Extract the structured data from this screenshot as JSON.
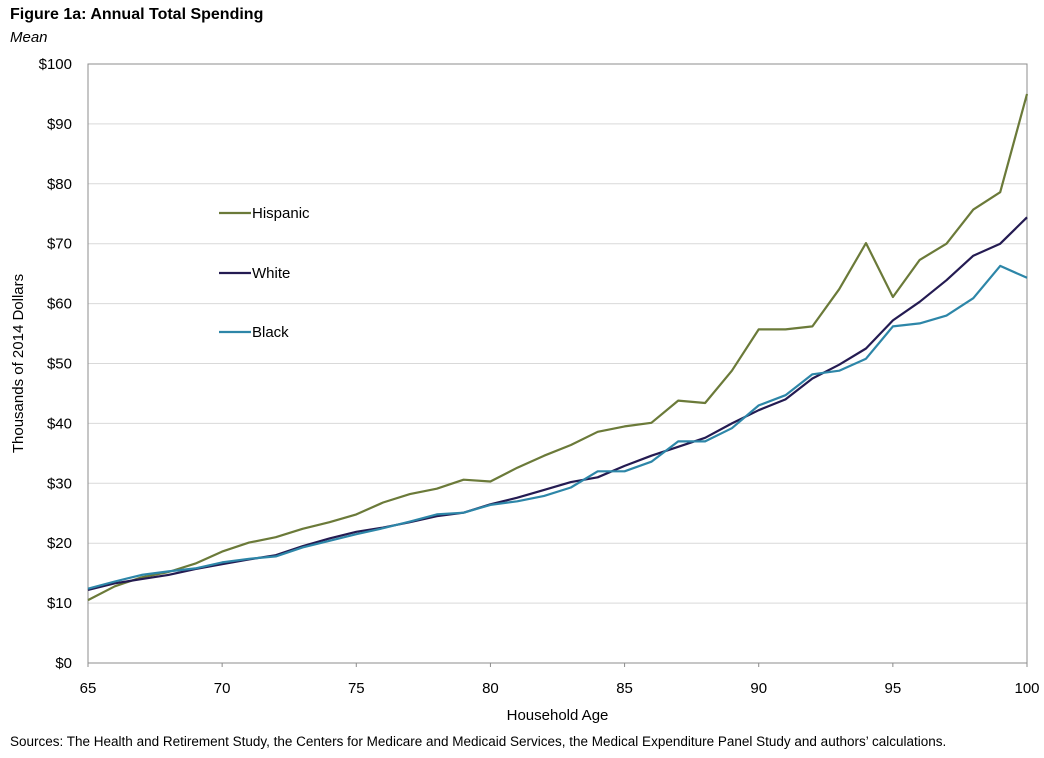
{
  "figure": {
    "title": "Figure 1a: Annual Total Spending",
    "subtitle": "Mean",
    "source": "Sources: The Health and Retirement Study, the Centers for Medicare and Medicaid Services, the Medical Expenditure Panel Study and authors’ calculations."
  },
  "chart_data": {
    "type": "line",
    "title": "Figure 1a: Annual Total Spending",
    "subtitle": "Mean",
    "xlabel": "Household Age",
    "ylabel": "Thousands of 2014 Dollars",
    "xlim": [
      65,
      100
    ],
    "ylim": [
      0,
      100
    ],
    "xticks": [
      65,
      70,
      75,
      80,
      85,
      90,
      95,
      100
    ],
    "yticks": [
      0,
      10,
      20,
      30,
      40,
      50,
      60,
      70,
      80,
      90,
      100
    ],
    "ytick_labels": [
      "$0",
      "$10",
      "$20",
      "$30",
      "$40",
      "$50",
      "$60",
      "$70",
      "$80",
      "$90",
      "$100"
    ],
    "grid": "horizontal",
    "legend_position": "upper-left inside plot",
    "x": [
      65,
      66,
      67,
      68,
      69,
      70,
      71,
      72,
      73,
      74,
      75,
      76,
      77,
      78,
      79,
      80,
      81,
      82,
      83,
      84,
      85,
      86,
      87,
      88,
      89,
      90,
      91,
      92,
      93,
      94,
      95,
      96,
      97,
      98,
      99,
      100
    ],
    "series": [
      {
        "name": "Hispanic",
        "color": "#6b7a39",
        "values": [
          10.5,
          12.8,
          14.3,
          15.2,
          16.6,
          18.6,
          20.1,
          21.0,
          22.4,
          23.5,
          24.8,
          26.8,
          28.2,
          29.1,
          30.6,
          30.3,
          32.6,
          34.6,
          36.4,
          38.6,
          39.5,
          40.1,
          43.8,
          43.4,
          48.8,
          55.7,
          55.7,
          56.2,
          62.4,
          70.1,
          61.1,
          67.3,
          70.0,
          75.7,
          78.6,
          95.0
        ]
      },
      {
        "name": "White",
        "color": "#241b52",
        "values": [
          12.2,
          13.3,
          14.0,
          14.7,
          15.7,
          16.5,
          17.3,
          18.0,
          19.5,
          20.8,
          21.9,
          22.6,
          23.5,
          24.5,
          25.1,
          26.5,
          27.6,
          28.9,
          30.2,
          31.0,
          32.9,
          34.6,
          36.1,
          37.6,
          40.0,
          42.2,
          44.0,
          47.5,
          49.8,
          52.5,
          57.2,
          60.3,
          63.9,
          68.0,
          70.0,
          74.4
        ]
      },
      {
        "name": "Black",
        "color": "#2d86a8",
        "values": [
          12.4,
          13.6,
          14.7,
          15.3,
          15.8,
          16.8,
          17.4,
          17.8,
          19.3,
          20.4,
          21.5,
          22.5,
          23.6,
          24.8,
          25.1,
          26.4,
          27.0,
          27.9,
          29.3,
          32.0,
          32.0,
          33.6,
          37.0,
          37.0,
          39.2,
          43.0,
          44.7,
          48.2,
          48.8,
          50.8,
          56.2,
          56.7,
          58.0,
          60.9,
          66.3,
          64.3
        ]
      }
    ]
  }
}
